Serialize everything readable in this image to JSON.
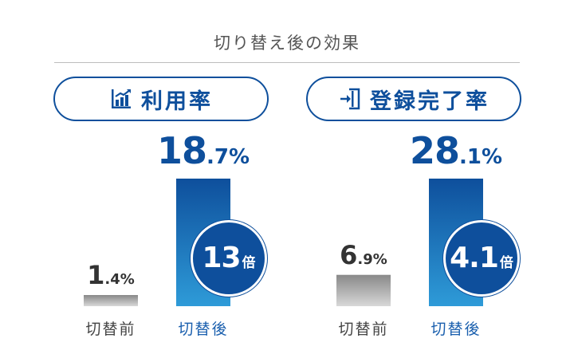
{
  "title": "切り替え後の効果",
  "panels": [
    {
      "label": "利用率",
      "icon": "bar-chart-icon",
      "badge": {
        "num": "13",
        "unit": "倍"
      }
    },
    {
      "label": "登録完了率",
      "icon": "sign-in-icon",
      "badge": {
        "num": "4.1",
        "unit": "倍"
      }
    }
  ],
  "colors": {
    "primary": "#0e4f9c",
    "primary_light": "#2e9bd8",
    "gray_dark": "#888888",
    "gray_light": "#d8d8d8"
  },
  "chart_data": [
    {
      "type": "bar",
      "title": "利用率",
      "categories": [
        "切替前",
        "切替後"
      ],
      "values": [
        1.4,
        18.7
      ],
      "value_labels": [
        {
          "int": "1",
          "dec": ".4%"
        },
        {
          "int": "18",
          "dec": ".7%"
        }
      ],
      "unit": "%",
      "ylim": [
        0,
        20
      ]
    },
    {
      "type": "bar",
      "title": "登録完了率",
      "categories": [
        "切替前",
        "切替後"
      ],
      "values": [
        6.9,
        28.1
      ],
      "value_labels": [
        {
          "int": "6",
          "dec": ".9%"
        },
        {
          "int": "28",
          "dec": ".1%"
        }
      ],
      "unit": "%",
      "ylim": [
        0,
        30
      ]
    }
  ]
}
